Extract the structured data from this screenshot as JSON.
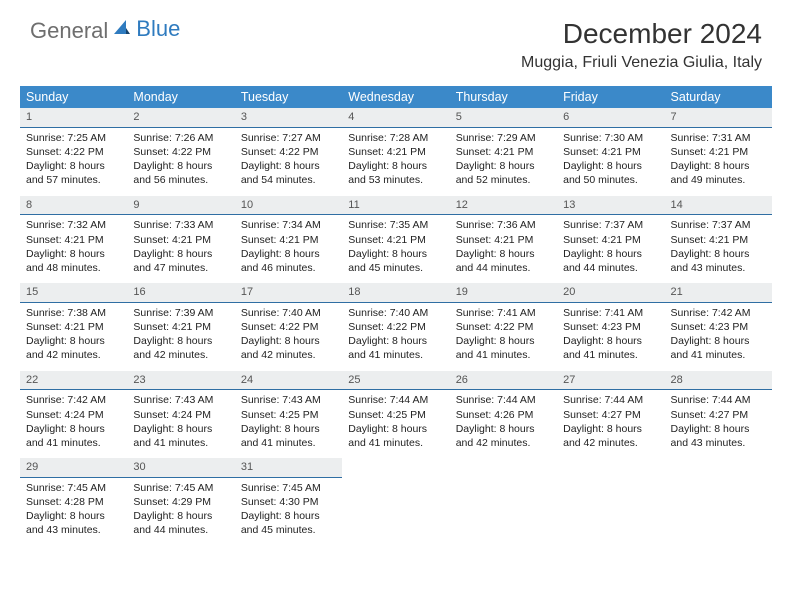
{
  "brand": {
    "general": "General",
    "blue": "Blue"
  },
  "title": "December 2024",
  "location": "Muggia, Friuli Venezia Giulia, Italy",
  "colors": {
    "header_bg": "#3b89c9",
    "daynum_bg": "#eceeef",
    "daynum_border": "#2f6ea3",
    "text": "#222222",
    "brand_grey": "#6e6e6e",
    "brand_blue": "#2f7bbf"
  },
  "weekdays": [
    "Sunday",
    "Monday",
    "Tuesday",
    "Wednesday",
    "Thursday",
    "Friday",
    "Saturday"
  ],
  "days": [
    {
      "n": "1",
      "sunrise": "7:25 AM",
      "sunset": "4:22 PM",
      "daylight": "8 hours and 57 minutes."
    },
    {
      "n": "2",
      "sunrise": "7:26 AM",
      "sunset": "4:22 PM",
      "daylight": "8 hours and 56 minutes."
    },
    {
      "n": "3",
      "sunrise": "7:27 AM",
      "sunset": "4:22 PM",
      "daylight": "8 hours and 54 minutes."
    },
    {
      "n": "4",
      "sunrise": "7:28 AM",
      "sunset": "4:21 PM",
      "daylight": "8 hours and 53 minutes."
    },
    {
      "n": "5",
      "sunrise": "7:29 AM",
      "sunset": "4:21 PM",
      "daylight": "8 hours and 52 minutes."
    },
    {
      "n": "6",
      "sunrise": "7:30 AM",
      "sunset": "4:21 PM",
      "daylight": "8 hours and 50 minutes."
    },
    {
      "n": "7",
      "sunrise": "7:31 AM",
      "sunset": "4:21 PM",
      "daylight": "8 hours and 49 minutes."
    },
    {
      "n": "8",
      "sunrise": "7:32 AM",
      "sunset": "4:21 PM",
      "daylight": "8 hours and 48 minutes."
    },
    {
      "n": "9",
      "sunrise": "7:33 AM",
      "sunset": "4:21 PM",
      "daylight": "8 hours and 47 minutes."
    },
    {
      "n": "10",
      "sunrise": "7:34 AM",
      "sunset": "4:21 PM",
      "daylight": "8 hours and 46 minutes."
    },
    {
      "n": "11",
      "sunrise": "7:35 AM",
      "sunset": "4:21 PM",
      "daylight": "8 hours and 45 minutes."
    },
    {
      "n": "12",
      "sunrise": "7:36 AM",
      "sunset": "4:21 PM",
      "daylight": "8 hours and 44 minutes."
    },
    {
      "n": "13",
      "sunrise": "7:37 AM",
      "sunset": "4:21 PM",
      "daylight": "8 hours and 44 minutes."
    },
    {
      "n": "14",
      "sunrise": "7:37 AM",
      "sunset": "4:21 PM",
      "daylight": "8 hours and 43 minutes."
    },
    {
      "n": "15",
      "sunrise": "7:38 AM",
      "sunset": "4:21 PM",
      "daylight": "8 hours and 42 minutes."
    },
    {
      "n": "16",
      "sunrise": "7:39 AM",
      "sunset": "4:21 PM",
      "daylight": "8 hours and 42 minutes."
    },
    {
      "n": "17",
      "sunrise": "7:40 AM",
      "sunset": "4:22 PM",
      "daylight": "8 hours and 42 minutes."
    },
    {
      "n": "18",
      "sunrise": "7:40 AM",
      "sunset": "4:22 PM",
      "daylight": "8 hours and 41 minutes."
    },
    {
      "n": "19",
      "sunrise": "7:41 AM",
      "sunset": "4:22 PM",
      "daylight": "8 hours and 41 minutes."
    },
    {
      "n": "20",
      "sunrise": "7:41 AM",
      "sunset": "4:23 PM",
      "daylight": "8 hours and 41 minutes."
    },
    {
      "n": "21",
      "sunrise": "7:42 AM",
      "sunset": "4:23 PM",
      "daylight": "8 hours and 41 minutes."
    },
    {
      "n": "22",
      "sunrise": "7:42 AM",
      "sunset": "4:24 PM",
      "daylight": "8 hours and 41 minutes."
    },
    {
      "n": "23",
      "sunrise": "7:43 AM",
      "sunset": "4:24 PM",
      "daylight": "8 hours and 41 minutes."
    },
    {
      "n": "24",
      "sunrise": "7:43 AM",
      "sunset": "4:25 PM",
      "daylight": "8 hours and 41 minutes."
    },
    {
      "n": "25",
      "sunrise": "7:44 AM",
      "sunset": "4:25 PM",
      "daylight": "8 hours and 41 minutes."
    },
    {
      "n": "26",
      "sunrise": "7:44 AM",
      "sunset": "4:26 PM",
      "daylight": "8 hours and 42 minutes."
    },
    {
      "n": "27",
      "sunrise": "7:44 AM",
      "sunset": "4:27 PM",
      "daylight": "8 hours and 42 minutes."
    },
    {
      "n": "28",
      "sunrise": "7:44 AM",
      "sunset": "4:27 PM",
      "daylight": "8 hours and 43 minutes."
    },
    {
      "n": "29",
      "sunrise": "7:45 AM",
      "sunset": "4:28 PM",
      "daylight": "8 hours and 43 minutes."
    },
    {
      "n": "30",
      "sunrise": "7:45 AM",
      "sunset": "4:29 PM",
      "daylight": "8 hours and 44 minutes."
    },
    {
      "n": "31",
      "sunrise": "7:45 AM",
      "sunset": "4:30 PM",
      "daylight": "8 hours and 45 minutes."
    }
  ],
  "labels": {
    "sunrise": "Sunrise:",
    "sunset": "Sunset:",
    "daylight": "Daylight:"
  },
  "layout": {
    "start_weekday": 0,
    "columns": 7
  }
}
